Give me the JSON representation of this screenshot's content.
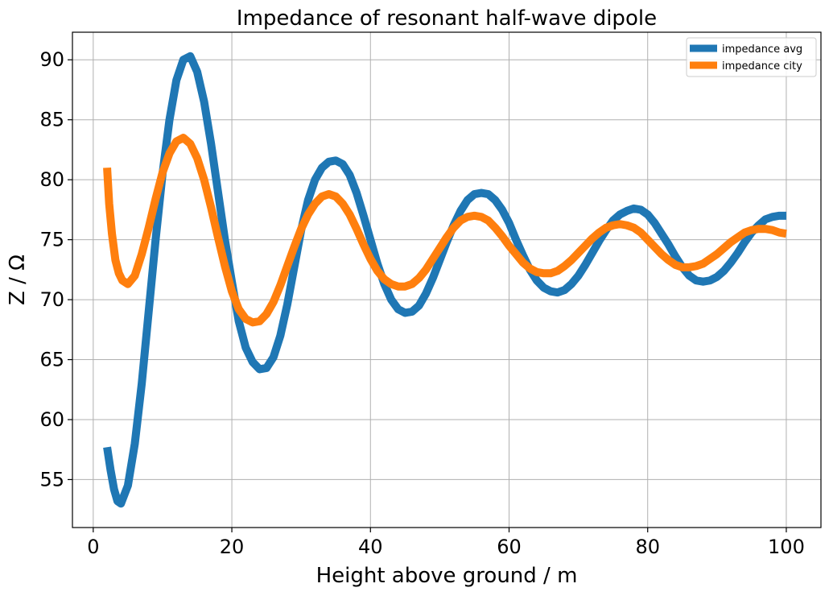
{
  "chart_data": {
    "type": "line",
    "title": "Impedance of resonant half-wave dipole",
    "xlabel": "Height above ground / m",
    "ylabel": "Z / Ω",
    "xlim": [
      -3,
      105
    ],
    "ylim": [
      51,
      92.3
    ],
    "xticks": [
      0,
      20,
      40,
      60,
      80,
      100
    ],
    "yticks": [
      55,
      60,
      65,
      70,
      75,
      80,
      85,
      90
    ],
    "grid": true,
    "legend_position": "top-right",
    "series": [
      {
        "name": "impedance avg",
        "color": "#1f77b4",
        "points": [
          [
            2,
            57.7
          ],
          [
            2.5,
            55.8
          ],
          [
            3,
            54.2
          ],
          [
            3.5,
            53.2
          ],
          [
            4,
            53
          ],
          [
            5,
            54.5
          ],
          [
            6,
            58
          ],
          [
            7,
            63
          ],
          [
            8,
            69
          ],
          [
            9,
            75
          ],
          [
            10,
            80.5
          ],
          [
            11,
            85
          ],
          [
            12,
            88.3
          ],
          [
            13,
            90
          ],
          [
            14,
            90.3
          ],
          [
            15,
            89
          ],
          [
            16,
            86.5
          ],
          [
            17,
            83
          ],
          [
            18,
            79
          ],
          [
            19,
            75
          ],
          [
            20,
            71.5
          ],
          [
            21,
            68.2
          ],
          [
            22,
            66
          ],
          [
            23,
            64.8
          ],
          [
            24,
            64.2
          ],
          [
            25,
            64.3
          ],
          [
            26,
            65.2
          ],
          [
            27,
            67
          ],
          [
            28,
            69.6
          ],
          [
            29,
            72.7
          ],
          [
            30,
            75.8
          ],
          [
            31,
            78.3
          ],
          [
            32,
            80
          ],
          [
            33,
            81
          ],
          [
            34,
            81.5
          ],
          [
            35,
            81.6
          ],
          [
            36,
            81.3
          ],
          [
            37,
            80.4
          ],
          [
            38,
            78.9
          ],
          [
            39,
            77
          ],
          [
            40,
            75
          ],
          [
            41,
            73
          ],
          [
            42,
            71.3
          ],
          [
            43,
            70
          ],
          [
            44,
            69.2
          ],
          [
            45,
            68.9
          ],
          [
            46,
            69
          ],
          [
            47,
            69.5
          ],
          [
            48,
            70.5
          ],
          [
            49,
            71.8
          ],
          [
            50,
            73.3
          ],
          [
            51,
            74.8
          ],
          [
            52,
            76.2
          ],
          [
            53,
            77.4
          ],
          [
            54,
            78.3
          ],
          [
            55,
            78.8
          ],
          [
            56,
            78.9
          ],
          [
            57,
            78.8
          ],
          [
            58,
            78.3
          ],
          [
            59,
            77.5
          ],
          [
            60,
            76.4
          ],
          [
            61,
            75
          ],
          [
            62,
            73.7
          ],
          [
            63,
            72.5
          ],
          [
            64,
            71.6
          ],
          [
            65,
            71
          ],
          [
            66,
            70.7
          ],
          [
            67,
            70.6
          ],
          [
            68,
            70.8
          ],
          [
            69,
            71.3
          ],
          [
            70,
            72
          ],
          [
            71,
            72.9
          ],
          [
            72,
            73.9
          ],
          [
            73,
            74.9
          ],
          [
            74,
            75.8
          ],
          [
            75,
            76.6
          ],
          [
            76,
            77.1
          ],
          [
            77,
            77.4
          ],
          [
            78,
            77.6
          ],
          [
            79,
            77.5
          ],
          [
            80,
            77.1
          ],
          [
            81,
            76.4
          ],
          [
            82,
            75.5
          ],
          [
            83,
            74.6
          ],
          [
            84,
            73.6
          ],
          [
            85,
            72.7
          ],
          [
            86,
            72
          ],
          [
            87,
            71.6
          ],
          [
            88,
            71.5
          ],
          [
            89,
            71.6
          ],
          [
            90,
            71.9
          ],
          [
            91,
            72.4
          ],
          [
            92,
            73.1
          ],
          [
            93,
            73.9
          ],
          [
            94,
            74.8
          ],
          [
            95,
            75.6
          ],
          [
            96,
            76.2
          ],
          [
            97,
            76.7
          ],
          [
            98,
            76.9
          ],
          [
            99,
            77
          ],
          [
            100,
            77
          ]
        ]
      },
      {
        "name": "impedance city",
        "color": "#ff7f0e",
        "points": [
          [
            2,
            81
          ],
          [
            2.3,
            78
          ],
          [
            2.7,
            75.5
          ],
          [
            3.2,
            73.3
          ],
          [
            3.7,
            72.2
          ],
          [
            4.2,
            71.6
          ],
          [
            5,
            71.3
          ],
          [
            6,
            72
          ],
          [
            7,
            73.8
          ],
          [
            8,
            76
          ],
          [
            9,
            78.4
          ],
          [
            10,
            80.6
          ],
          [
            11,
            82.2
          ],
          [
            12,
            83.2
          ],
          [
            13,
            83.5
          ],
          [
            14,
            83
          ],
          [
            15,
            81.8
          ],
          [
            16,
            80
          ],
          [
            17,
            77.7
          ],
          [
            18,
            75.2
          ],
          [
            19,
            72.8
          ],
          [
            20,
            70.7
          ],
          [
            21,
            69.2
          ],
          [
            22,
            68.4
          ],
          [
            23,
            68.1
          ],
          [
            24,
            68.2
          ],
          [
            25,
            68.8
          ],
          [
            26,
            69.8
          ],
          [
            27,
            71.2
          ],
          [
            28,
            72.8
          ],
          [
            29,
            74.4
          ],
          [
            30,
            75.9
          ],
          [
            31,
            77.1
          ],
          [
            32,
            78
          ],
          [
            33,
            78.6
          ],
          [
            34,
            78.8
          ],
          [
            35,
            78.6
          ],
          [
            36,
            78
          ],
          [
            37,
            77.1
          ],
          [
            38,
            75.9
          ],
          [
            39,
            74.6
          ],
          [
            40,
            73.4
          ],
          [
            41,
            72.4
          ],
          [
            42,
            71.7
          ],
          [
            43,
            71.3
          ],
          [
            44,
            71.1
          ],
          [
            45,
            71.1
          ],
          [
            46,
            71.3
          ],
          [
            47,
            71.8
          ],
          [
            48,
            72.5
          ],
          [
            49,
            73.4
          ],
          [
            50,
            74.3
          ],
          [
            51,
            75.2
          ],
          [
            52,
            76
          ],
          [
            53,
            76.6
          ],
          [
            54,
            76.9
          ],
          [
            55,
            77
          ],
          [
            56,
            76.9
          ],
          [
            57,
            76.6
          ],
          [
            58,
            76
          ],
          [
            59,
            75.3
          ],
          [
            60,
            74.5
          ],
          [
            61,
            73.8
          ],
          [
            62,
            73.1
          ],
          [
            63,
            72.6
          ],
          [
            64,
            72.3
          ],
          [
            65,
            72.2
          ],
          [
            66,
            72.2
          ],
          [
            67,
            72.4
          ],
          [
            68,
            72.8
          ],
          [
            69,
            73.3
          ],
          [
            70,
            73.9
          ],
          [
            71,
            74.5
          ],
          [
            72,
            75.1
          ],
          [
            73,
            75.6
          ],
          [
            74,
            76
          ],
          [
            75,
            76.2
          ],
          [
            76,
            76.3
          ],
          [
            77,
            76.2
          ],
          [
            78,
            76
          ],
          [
            79,
            75.6
          ],
          [
            80,
            75
          ],
          [
            81,
            74.4
          ],
          [
            82,
            73.8
          ],
          [
            83,
            73.3
          ],
          [
            84,
            72.9
          ],
          [
            85,
            72.7
          ],
          [
            86,
            72.7
          ],
          [
            87,
            72.8
          ],
          [
            88,
            73
          ],
          [
            89,
            73.4
          ],
          [
            90,
            73.8
          ],
          [
            91,
            74.3
          ],
          [
            92,
            74.8
          ],
          [
            93,
            75.2
          ],
          [
            94,
            75.6
          ],
          [
            95,
            75.8
          ],
          [
            96,
            75.9
          ],
          [
            97,
            75.9
          ],
          [
            98,
            75.8
          ],
          [
            99,
            75.6
          ],
          [
            100,
            75.5
          ]
        ]
      }
    ]
  }
}
